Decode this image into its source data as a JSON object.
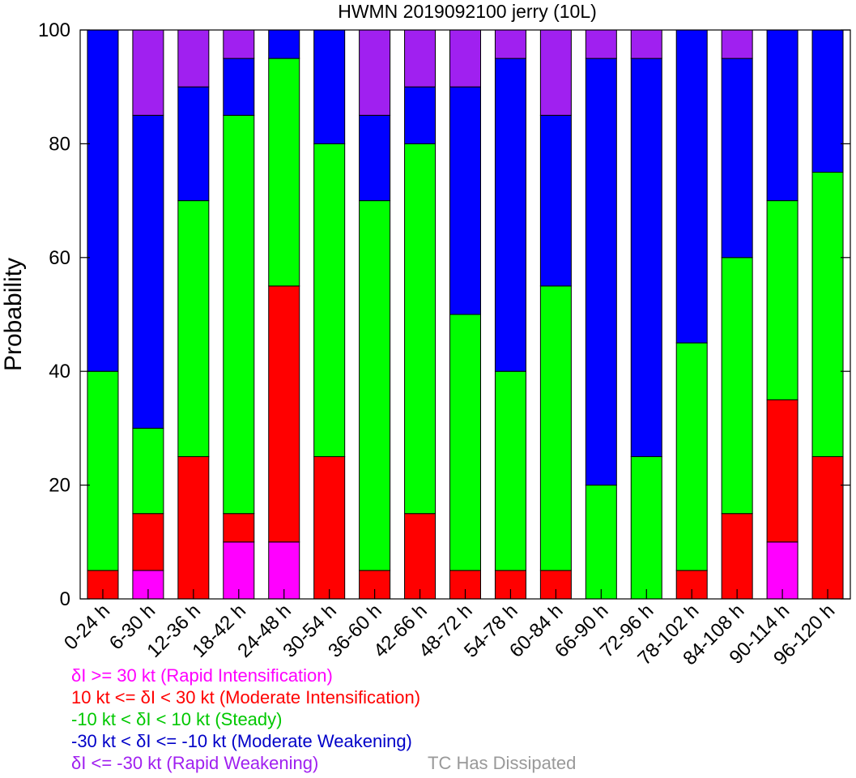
{
  "chart_data": {
    "type": "bar",
    "stacked": true,
    "title": "HWMN 2019092100 jerry (10L)",
    "ylabel": "Probability",
    "xlabel": "",
    "ylim": [
      0,
      100
    ],
    "yticks": [
      0,
      20,
      40,
      60,
      80,
      100
    ],
    "grid": false,
    "categories": [
      "0-24 h",
      "6-30 h",
      "12-36 h",
      "18-42 h",
      "24-48 h",
      "30-54 h",
      "36-60 h",
      "42-66 h",
      "48-72 h",
      "54-78 h",
      "60-84 h",
      "66-90 h",
      "72-96 h",
      "78-102 h",
      "84-108 h",
      "90-114 h",
      "96-120 h"
    ],
    "series": [
      {
        "name": "δI >= 30 kt (Rapid Intensification)",
        "color": "#ff00ff",
        "values": [
          0,
          5,
          0,
          10,
          10,
          0,
          0,
          0,
          0,
          0,
          0,
          0,
          0,
          0,
          0,
          10,
          0
        ]
      },
      {
        "name": "10 kt <= δI < 30 kt (Moderate Intensification)",
        "color": "#ff0000",
        "values": [
          5,
          10,
          25,
          5,
          45,
          25,
          5,
          15,
          5,
          5,
          5,
          0,
          0,
          5,
          15,
          25,
          25
        ]
      },
      {
        "name": "-10 kt < δI < 10 kt (Steady)",
        "color": "#00ff00",
        "values": [
          35,
          15,
          45,
          70,
          40,
          55,
          65,
          65,
          45,
          35,
          50,
          20,
          25,
          40,
          45,
          35,
          50
        ]
      },
      {
        "name": "-30 kt < δI <= -10 kt (Moderate Weakening)",
        "color": "#0000ff",
        "values": [
          60,
          55,
          20,
          10,
          5,
          20,
          15,
          10,
          40,
          55,
          30,
          75,
          70,
          55,
          35,
          30,
          25
        ]
      },
      {
        "name": "δI <= -30 kt (Rapid Weakening)",
        "color": "#a020f0",
        "values": [
          0,
          15,
          10,
          5,
          0,
          0,
          15,
          10,
          10,
          5,
          15,
          5,
          5,
          0,
          5,
          0,
          0
        ]
      }
    ]
  },
  "legend": {
    "ri": "δI >= 30 kt (Rapid Intensification)",
    "mi": "10 kt <= δI < 30 kt (Moderate Intensification)",
    "steady": "-10 kt < δI < 10 kt (Steady)",
    "mw": "-30 kt < δI <= -10 kt (Moderate Weakening)",
    "rw": "δI <= -30 kt (Rapid Weakening)",
    "dissipated": "TC Has Dissipated"
  },
  "colors": {
    "ri": "#ff00ff",
    "mi": "#ff0000",
    "steady": "#00c800",
    "mw": "#0000c8",
    "rw": "#a020f0",
    "dissipated": "#999999"
  }
}
